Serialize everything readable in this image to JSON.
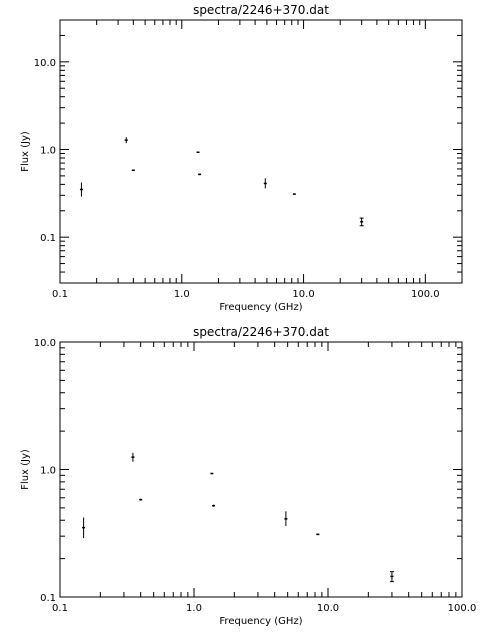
{
  "chart_data": [
    {
      "type": "scatter",
      "title": "spectra/2246+370.dat",
      "xlabel": "Frequency (GHz)",
      "ylabel": "Flux (Jy)",
      "xscale": "log",
      "yscale": "log",
      "xlim": [
        0.1,
        200
      ],
      "ylim": [
        0.03,
        30
      ],
      "xticks": [
        "0.1",
        "1.0",
        "10.0",
        "100.0"
      ],
      "yticks": [
        "0.1",
        "1.0",
        "10.0"
      ],
      "grid": false,
      "points": [
        {
          "x": 0.15,
          "y": 0.35,
          "ylo": 0.29,
          "yhi": 0.42
        },
        {
          "x": 0.35,
          "y": 1.28,
          "ylo": 1.18,
          "yhi": 1.38
        },
        {
          "x": 0.4,
          "y": 0.58,
          "ylo": 0.57,
          "yhi": 0.59
        },
        {
          "x": 1.36,
          "y": 0.93,
          "ylo": 0.92,
          "yhi": 0.94
        },
        {
          "x": 1.4,
          "y": 0.52,
          "ylo": 0.51,
          "yhi": 0.53
        },
        {
          "x": 4.85,
          "y": 0.41,
          "ylo": 0.36,
          "yhi": 0.47
        },
        {
          "x": 8.4,
          "y": 0.31,
          "ylo": 0.305,
          "yhi": 0.315
        },
        {
          "x": 30.0,
          "y": 0.15,
          "ylo": 0.135,
          "yhi": 0.165
        }
      ]
    },
    {
      "type": "scatter",
      "title": "spectra/2246+370.dat",
      "xlabel": "Frequency (GHz)",
      "ylabel": "Flux (Jy)",
      "xscale": "log",
      "yscale": "log",
      "xlim": [
        0.1,
        100
      ],
      "ylim": [
        0.1,
        10
      ],
      "xticks": [
        "0.1",
        "1.0",
        "10.0",
        "100.0"
      ],
      "yticks": [
        "0.1",
        "1.0",
        "10.0"
      ],
      "grid": false,
      "points": [
        {
          "x": 0.15,
          "y": 0.35,
          "ylo": 0.29,
          "yhi": 0.42
        },
        {
          "x": 0.35,
          "y": 1.25,
          "ylo": 1.15,
          "yhi": 1.35
        },
        {
          "x": 0.4,
          "y": 0.58,
          "ylo": 0.57,
          "yhi": 0.59
        },
        {
          "x": 1.36,
          "y": 0.93,
          "ylo": 0.92,
          "yhi": 0.94
        },
        {
          "x": 1.4,
          "y": 0.52,
          "ylo": 0.51,
          "yhi": 0.53
        },
        {
          "x": 4.85,
          "y": 0.41,
          "ylo": 0.36,
          "yhi": 0.47
        },
        {
          "x": 8.4,
          "y": 0.31,
          "ylo": 0.305,
          "yhi": 0.315
        },
        {
          "x": 30.0,
          "y": 0.145,
          "ylo": 0.132,
          "yhi": 0.158
        }
      ]
    }
  ]
}
